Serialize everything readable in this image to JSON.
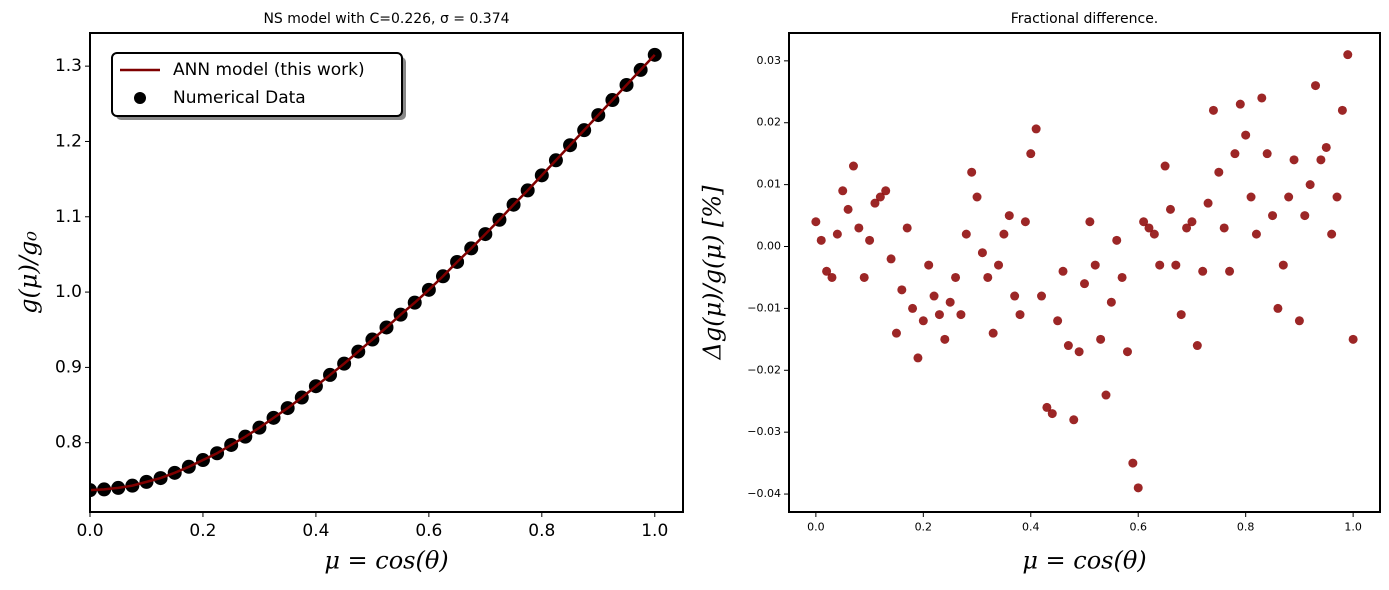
{
  "chart_data": [
    {
      "type": "line_scatter",
      "title": "NS model with C=0.226, σ = 0.374",
      "xlabel": "μ = cos(θ)",
      "ylabel": "g(μ)/g₀",
      "x": [
        0,
        0.025,
        0.05,
        0.075,
        0.1,
        0.125,
        0.15,
        0.175,
        0.2,
        0.225,
        0.25,
        0.275,
        0.3,
        0.325,
        0.35,
        0.375,
        0.4,
        0.425,
        0.45,
        0.475,
        0.5,
        0.525,
        0.55,
        0.575,
        0.6,
        0.625,
        0.65,
        0.675,
        0.7,
        0.725,
        0.75,
        0.775,
        0.8,
        0.825,
        0.85,
        0.875,
        0.9,
        0.925,
        0.95,
        0.975,
        1
      ],
      "series": [
        {
          "name": "Numerical Data",
          "mark": "scatter",
          "color": "#000000",
          "values": [
            0.737,
            0.738,
            0.74,
            0.743,
            0.748,
            0.753,
            0.76,
            0.768,
            0.777,
            0.786,
            0.797,
            0.808,
            0.82,
            0.833,
            0.846,
            0.86,
            0.875,
            0.89,
            0.905,
            0.921,
            0.937,
            0.953,
            0.97,
            0.986,
            1.003,
            1.021,
            1.04,
            1.058,
            1.077,
            1.096,
            1.116,
            1.135,
            1.155,
            1.175,
            1.195,
            1.215,
            1.235,
            1.255,
            1.275,
            1.295,
            1.315
          ]
        },
        {
          "name": "ANN model (this work)",
          "mark": "line",
          "color": "#7f0000",
          "values": [
            0.737,
            0.738,
            0.74,
            0.743,
            0.748,
            0.753,
            0.76,
            0.768,
            0.777,
            0.786,
            0.797,
            0.808,
            0.82,
            0.833,
            0.846,
            0.86,
            0.875,
            0.89,
            0.905,
            0.921,
            0.937,
            0.953,
            0.97,
            0.986,
            1.003,
            1.021,
            1.04,
            1.058,
            1.077,
            1.096,
            1.116,
            1.135,
            1.155,
            1.175,
            1.195,
            1.215,
            1.235,
            1.255,
            1.275,
            1.295,
            1.315
          ]
        }
      ],
      "legend": "upper left",
      "xlim": [
        0,
        1.05
      ],
      "xticks": [
        {
          "value": 0,
          "label": "0.0"
        },
        {
          "value": 0.2,
          "label": "0.2"
        },
        {
          "value": 0.4,
          "label": "0.4"
        },
        {
          "value": 0.6,
          "label": "0.6"
        },
        {
          "value": 0.8,
          "label": "0.8"
        },
        {
          "value": 1,
          "label": "1.0"
        }
      ],
      "ylim": [
        0.708,
        1.344
      ],
      "yticks": [
        0.8,
        0.9,
        {
          "value": 1,
          "label": "1.0"
        },
        1.1,
        1.2,
        1.3
      ]
    },
    {
      "type": "scatter",
      "title": "Fractional difference.",
      "xlabel": "μ = cos(θ)",
      "ylabel": "Δg(μ)/g(μ)  [%]",
      "color": "#8b0000",
      "x": [
        0,
        0.01,
        0.02,
        0.03,
        0.04,
        0.05,
        0.06,
        0.07,
        0.08,
        0.09,
        0.1,
        0.11,
        0.12,
        0.13,
        0.14,
        0.15,
        0.16,
        0.17,
        0.18,
        0.19,
        0.2,
        0.21,
        0.22,
        0.23,
        0.24,
        0.25,
        0.26,
        0.27,
        0.28,
        0.29,
        0.3,
        0.31,
        0.32,
        0.33,
        0.34,
        0.35,
        0.36,
        0.37,
        0.38,
        0.39,
        0.4,
        0.41,
        0.42,
        0.43,
        0.44,
        0.45,
        0.46,
        0.47,
        0.48,
        0.49,
        0.5,
        0.51,
        0.52,
        0.53,
        0.54,
        0.55,
        0.56,
        0.57,
        0.58,
        0.59,
        0.6,
        0.61,
        0.62,
        0.63,
        0.64,
        0.65,
        0.66,
        0.67,
        0.68,
        0.69,
        0.7,
        0.71,
        0.72,
        0.73,
        0.74,
        0.75,
        0.76,
        0.77,
        0.78,
        0.79,
        0.8,
        0.81,
        0.82,
        0.83,
        0.84,
        0.85,
        0.86,
        0.87,
        0.88,
        0.89,
        0.9,
        0.91,
        0.92,
        0.93,
        0.94,
        0.95,
        0.96,
        0.97,
        0.98,
        0.99,
        1
      ],
      "values": [
        0.004,
        0.001,
        -0.004,
        -0.005,
        0.002,
        0.009,
        0.006,
        0.013,
        0.003,
        -0.005,
        0.001,
        0.007,
        0.008,
        0.009,
        -0.002,
        -0.014,
        -0.007,
        0.003,
        -0.01,
        -0.018,
        -0.012,
        -0.003,
        -0.008,
        -0.011,
        -0.015,
        -0.009,
        -0.005,
        -0.011,
        0.002,
        0.012,
        0.008,
        -0.001,
        -0.005,
        -0.014,
        -0.003,
        0.002,
        0.005,
        -0.008,
        -0.011,
        0.004,
        0.015,
        0.019,
        -0.008,
        -0.026,
        -0.027,
        -0.012,
        -0.004,
        -0.016,
        -0.028,
        -0.017,
        -0.006,
        0.004,
        -0.003,
        -0.015,
        -0.024,
        -0.009,
        0.001,
        -0.005,
        -0.017,
        -0.035,
        -0.039,
        0.004,
        0.003,
        0.002,
        -0.003,
        0.013,
        0.006,
        -0.003,
        -0.011,
        0.003,
        0.004,
        -0.016,
        -0.004,
        0.007,
        0.022,
        0.012,
        0.003,
        -0.004,
        0.015,
        0.023,
        0.018,
        0.008,
        0.002,
        0.024,
        0.015,
        0.005,
        -0.01,
        -0.003,
        0.008,
        0.014,
        -0.012,
        0.005,
        0.01,
        0.026,
        0.014,
        0.016,
        0.002,
        0.008,
        0.022,
        0.031,
        -0.015
      ],
      "xlim": [
        -0.05,
        1.05
      ],
      "xticks": [
        {
          "value": 0,
          "label": "0.0"
        },
        {
          "value": 0.2,
          "label": "0.2"
        },
        {
          "value": 0.4,
          "label": "0.4"
        },
        {
          "value": 0.6,
          "label": "0.6"
        },
        {
          "value": 0.8,
          "label": "0.8"
        },
        {
          "value": 1,
          "label": "1.0"
        }
      ],
      "ylim": [
        -0.0429,
        0.0345
      ],
      "yticks": [
        {
          "value": -0.04,
          "label": "−0.04"
        },
        {
          "value": -0.03,
          "label": "−0.03"
        },
        {
          "value": -0.02,
          "label": "−0.02"
        },
        {
          "value": -0.01,
          "label": "−0.01"
        },
        {
          "value": 0,
          "label": "0.00"
        },
        0.01,
        0.02,
        0.03
      ]
    }
  ]
}
